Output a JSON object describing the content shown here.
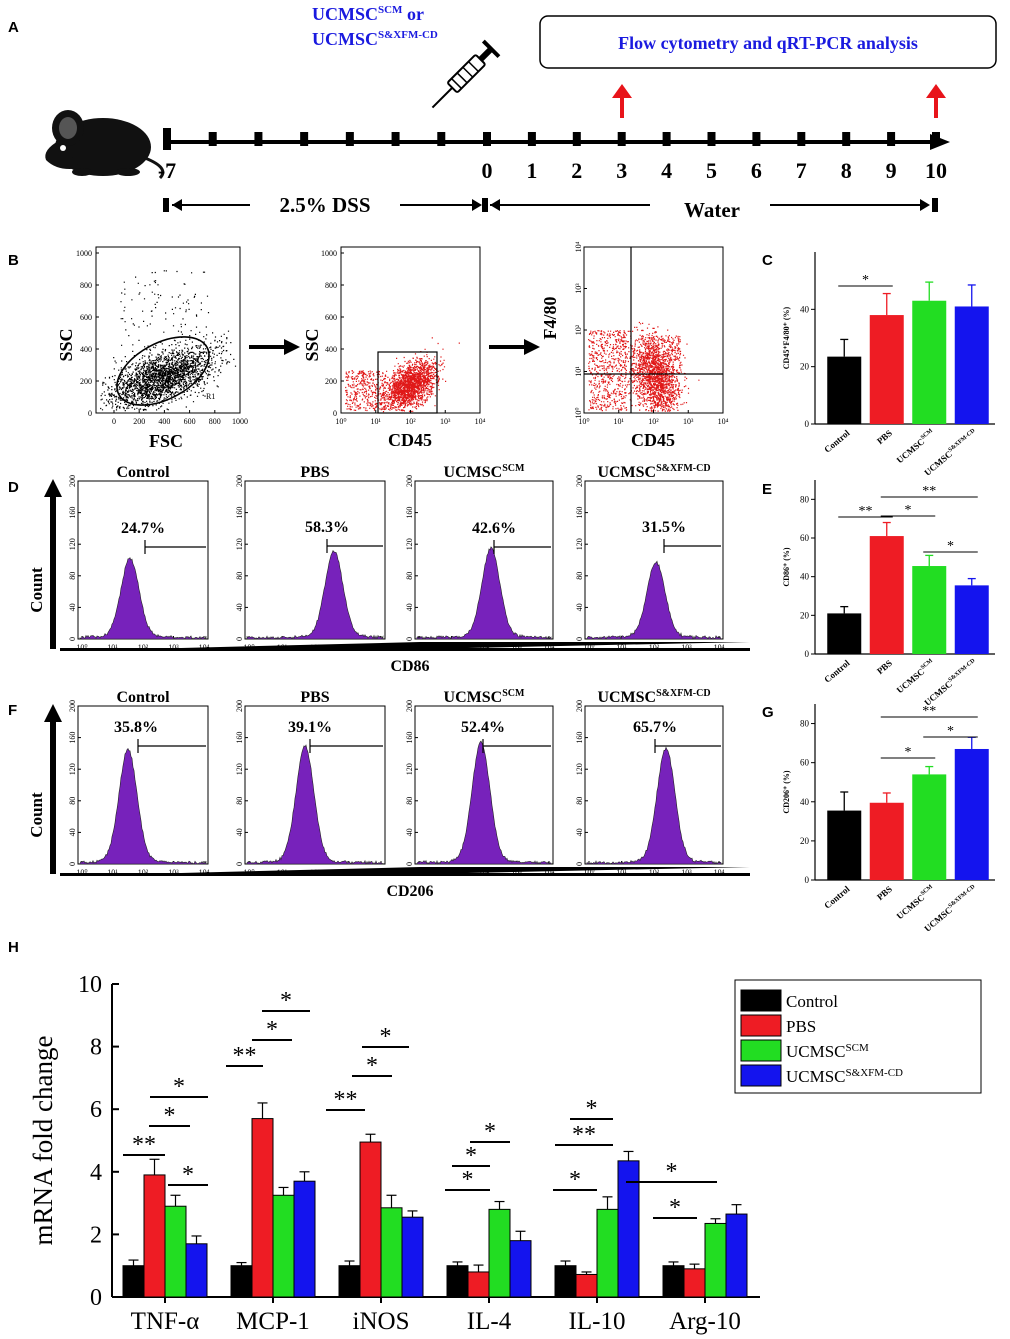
{
  "panels": {
    "A": "A",
    "B": "B",
    "C": "C",
    "D": "D",
    "E": "E",
    "F": "F",
    "G": "G",
    "H": "H"
  },
  "panel_a": {
    "treatment_line1": "UCMSC",
    "treatment_line1_sup": "SCM",
    "treatment_line1_suffix": " or",
    "treatment_line2": "UCMSC",
    "treatment_line2_sup": "S&XFM-CD",
    "analysis_box": "Flow cytometry and qRT-PCR analysis",
    "days": [
      "-7",
      "0",
      "1",
      "2",
      "3",
      "4",
      "5",
      "6",
      "7",
      "8",
      "9",
      "10"
    ],
    "dss_label": "2.5% DSS",
    "water_label": "Water",
    "colors": {
      "treatment": "#1a1adf",
      "arrow": "#e8141a",
      "axis": "#000000"
    }
  },
  "panel_b": {
    "plot1": {
      "ylabel": "SSC",
      "xlabel": "FSC",
      "gate": "R1",
      "yticks": [
        "0",
        "200",
        "400",
        "600",
        "800",
        "1000"
      ],
      "xticks": [
        "0",
        "200",
        "400",
        "600",
        "800",
        "1000"
      ]
    },
    "plot2": {
      "ylabel": "SSC",
      "xlabel": "CD45",
      "yticks": [
        "0",
        "200",
        "400",
        "600",
        "800",
        "1000"
      ],
      "xticks": [
        "10⁰",
        "10¹",
        "10²",
        "10³",
        "10⁴"
      ]
    },
    "plot3": {
      "ylabel": "F4/80",
      "xlabel": "CD45",
      "yticks": [
        "10⁰",
        "10¹",
        "10²",
        "10³",
        "10⁴"
      ],
      "xticks": [
        "10⁰",
        "10¹",
        "10²",
        "10³",
        "10⁴"
      ]
    }
  },
  "histograms": {
    "yticks": [
      "0",
      "40",
      "80",
      "120",
      "160",
      "200"
    ],
    "xticks": [
      "10⁰",
      "10¹",
      "10²",
      "10³",
      "10⁴"
    ],
    "count_label": "Count",
    "row_d": {
      "xlabel": "CD86",
      "groups": [
        {
          "title": "Control",
          "sup": "",
          "pct": "24.7%"
        },
        {
          "title": "PBS",
          "sup": "",
          "pct": "58.3%"
        },
        {
          "title": "UCMSC",
          "sup": "SCM",
          "pct": "42.6%"
        },
        {
          "title": "UCMSC",
          "sup": "S&XFM-CD",
          "pct": "31.5%"
        }
      ]
    },
    "row_f": {
      "xlabel": "CD206",
      "groups": [
        {
          "title": "Control",
          "sup": "",
          "pct": "35.8%"
        },
        {
          "title": "PBS",
          "sup": "",
          "pct": "39.1%"
        },
        {
          "title": "UCMSC",
          "sup": "SCM",
          "pct": "52.4%"
        },
        {
          "title": "UCMSC",
          "sup": "S&XFM-CD",
          "pct": "65.7%"
        }
      ]
    }
  },
  "chart_data": [
    {
      "id": "C",
      "type": "bar",
      "ylabel": "CD45⁺F4/80⁺ (%)",
      "categories": [
        "Control",
        "PBS",
        "UCMSC",
        "UCMSC"
      ],
      "category_sups": [
        "",
        "",
        "SCM",
        "S&XFM-CD"
      ],
      "values": [
        23.5,
        38,
        43,
        41
      ],
      "errors": [
        6,
        7.5,
        6.5,
        7.5
      ],
      "ylim": [
        0,
        60
      ],
      "yticks": [
        "0",
        "20",
        "40"
      ],
      "colors": [
        "#000000",
        "#ee1c24",
        "#22dd22",
        "#1414ee"
      ],
      "significance": [
        {
          "from": 0,
          "to": 1,
          "label": "*"
        }
      ]
    },
    {
      "id": "E",
      "type": "bar",
      "ylabel": "CD86⁺ (%)",
      "categories": [
        "Control",
        "PBS",
        "UCMSC",
        "UCMSC"
      ],
      "category_sups": [
        "",
        "",
        "SCM",
        "S&XFM-CD"
      ],
      "values": [
        21,
        61,
        45.5,
        35.5
      ],
      "errors": [
        3.5,
        7,
        5.5,
        3.5
      ],
      "ylim": [
        0,
        90
      ],
      "yticks": [
        "0",
        "20",
        "40",
        "60",
        "80"
      ],
      "colors": [
        "#000000",
        "#ee1c24",
        "#22dd22",
        "#1414ee"
      ],
      "significance": [
        {
          "from": 0,
          "to": 1,
          "label": "**"
        },
        {
          "from": 1,
          "to": 2,
          "label": "*"
        },
        {
          "from": 1,
          "to": 3,
          "label": "**"
        },
        {
          "from": 2,
          "to": 3,
          "label": "*"
        }
      ]
    },
    {
      "id": "G",
      "type": "bar",
      "ylabel": "CD206⁺ (%)",
      "categories": [
        "Control",
        "PBS",
        "UCMSC",
        "UCMSC"
      ],
      "category_sups": [
        "",
        "",
        "SCM",
        "S&XFM-CD"
      ],
      "values": [
        35.5,
        39.5,
        54,
        67
      ],
      "errors": [
        9.5,
        5,
        4,
        6
      ],
      "ylim": [
        0,
        90
      ],
      "yticks": [
        "0",
        "20",
        "40",
        "60",
        "80"
      ],
      "colors": [
        "#000000",
        "#ee1c24",
        "#22dd22",
        "#1414ee"
      ],
      "significance": [
        {
          "from": 1,
          "to": 2,
          "label": "*"
        },
        {
          "from": 1,
          "to": 3,
          "label": "**"
        },
        {
          "from": 2,
          "to": 3,
          "label": "*"
        }
      ]
    },
    {
      "id": "H",
      "type": "bar",
      "ylabel": "mRNA fold change",
      "ylim": [
        0,
        10
      ],
      "yticks": [
        "0",
        "2",
        "4",
        "6",
        "8",
        "10"
      ],
      "categories": [
        "TNF-α",
        "MCP-1",
        "iNOS",
        "IL-4",
        "IL-10",
        "Arg-10"
      ],
      "series": [
        {
          "name": "Control",
          "sup": "",
          "color": "#000000",
          "values": [
            1,
            1,
            1,
            1,
            1,
            1
          ],
          "errors": [
            0.18,
            0.1,
            0.15,
            0.12,
            0.15,
            0.12
          ]
        },
        {
          "name": "PBS",
          "sup": "",
          "color": "#ee1c24",
          "values": [
            3.9,
            5.7,
            4.95,
            0.8,
            0.72,
            0.9
          ],
          "errors": [
            0.5,
            0.5,
            0.25,
            0.22,
            0.08,
            0.15
          ]
        },
        {
          "name": "UCMSC",
          "sup": "SCM",
          "color": "#22dd22",
          "values": [
            2.9,
            3.25,
            2.85,
            2.8,
            2.8,
            2.35
          ],
          "errors": [
            0.35,
            0.25,
            0.4,
            0.25,
            0.4,
            0.15
          ]
        },
        {
          "name": "UCMSC",
          "sup": "S&XFM-CD",
          "color": "#1414ee",
          "values": [
            1.7,
            3.7,
            2.55,
            1.8,
            4.35,
            2.65
          ],
          "errors": [
            0.25,
            0.3,
            0.2,
            0.3,
            0.3,
            0.3
          ]
        }
      ],
      "significance": [
        {
          "group": 0,
          "from": 0,
          "to": 1,
          "label": "**"
        },
        {
          "group": 0,
          "from": 1,
          "to": 2,
          "label": "*"
        },
        {
          "group": 0,
          "from": 1,
          "to": 3,
          "label": "*"
        },
        {
          "group": 0,
          "from": 2,
          "to": 3,
          "label": "*"
        },
        {
          "group": 1,
          "from": 0,
          "to": 1,
          "label": "**"
        },
        {
          "group": 1,
          "from": 1,
          "to": 2,
          "label": "*"
        },
        {
          "group": 1,
          "from": 1,
          "to": 3,
          "label": "*"
        },
        {
          "group": 2,
          "from": 0,
          "to": 1,
          "label": "**"
        },
        {
          "group": 2,
          "from": 1,
          "to": 2,
          "label": "*"
        },
        {
          "group": 2,
          "from": 1,
          "to": 3,
          "label": "*"
        },
        {
          "group": 3,
          "from": 1,
          "to": 2,
          "label": "*"
        },
        {
          "group": 3,
          "from": 1,
          "to": 3,
          "label": "*"
        },
        {
          "group": 3,
          "from": 1,
          "to": 3,
          "label": "*",
          "level": 2
        },
        {
          "group": 4,
          "from": 1,
          "to": 2,
          "label": "*"
        },
        {
          "group": 4,
          "from": 1,
          "to": 3,
          "label": "**"
        },
        {
          "group": 4,
          "from": 2,
          "to": 3,
          "label": "*"
        },
        {
          "group": 5,
          "from": 1,
          "to": 2,
          "label": "*"
        },
        {
          "group": 5,
          "from": 1,
          "to": 3,
          "label": "*"
        }
      ]
    }
  ]
}
